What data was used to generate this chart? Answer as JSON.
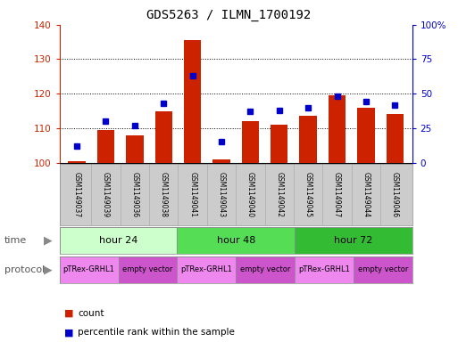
{
  "title": "GDS5263 / ILMN_1700192",
  "samples": [
    "GSM1149037",
    "GSM1149039",
    "GSM1149036",
    "GSM1149038",
    "GSM1149041",
    "GSM1149043",
    "GSM1149040",
    "GSM1149042",
    "GSM1149045",
    "GSM1149047",
    "GSM1149044",
    "GSM1149046"
  ],
  "counts": [
    100.5,
    109.5,
    108.0,
    115.0,
    135.5,
    101.0,
    112.0,
    111.0,
    113.5,
    119.5,
    116.0,
    114.0
  ],
  "percentiles": [
    12,
    30,
    27,
    43,
    63,
    15,
    37,
    38,
    40,
    48,
    44,
    42
  ],
  "ylim_left": [
    100,
    140
  ],
  "ylim_right": [
    0,
    100
  ],
  "yticks_left": [
    100,
    110,
    120,
    130,
    140
  ],
  "yticks_right": [
    0,
    25,
    50,
    75,
    100
  ],
  "bar_color": "#cc2200",
  "dot_color": "#0000cc",
  "grid_color": "#000000",
  "time_groups": [
    {
      "label": "hour 24",
      "start": 0,
      "end": 4,
      "color": "#ccffcc"
    },
    {
      "label": "hour 48",
      "start": 4,
      "end": 8,
      "color": "#55dd55"
    },
    {
      "label": "hour 72",
      "start": 8,
      "end": 12,
      "color": "#33bb33"
    }
  ],
  "protocol_groups": [
    {
      "label": "pTRex-GRHL1",
      "start": 0,
      "end": 2,
      "color": "#ee88ee"
    },
    {
      "label": "empty vector",
      "start": 2,
      "end": 4,
      "color": "#cc55cc"
    },
    {
      "label": "pTRex-GRHL1",
      "start": 4,
      "end": 6,
      "color": "#ee88ee"
    },
    {
      "label": "empty vector",
      "start": 6,
      "end": 8,
      "color": "#cc55cc"
    },
    {
      "label": "pTRex-GRHL1",
      "start": 8,
      "end": 10,
      "color": "#ee88ee"
    },
    {
      "label": "empty vector",
      "start": 10,
      "end": 12,
      "color": "#cc55cc"
    }
  ],
  "bg_color": "#ffffff",
  "plot_bg_color": "#ffffff",
  "sample_bg_color": "#cccccc",
  "label_color": "#888888"
}
